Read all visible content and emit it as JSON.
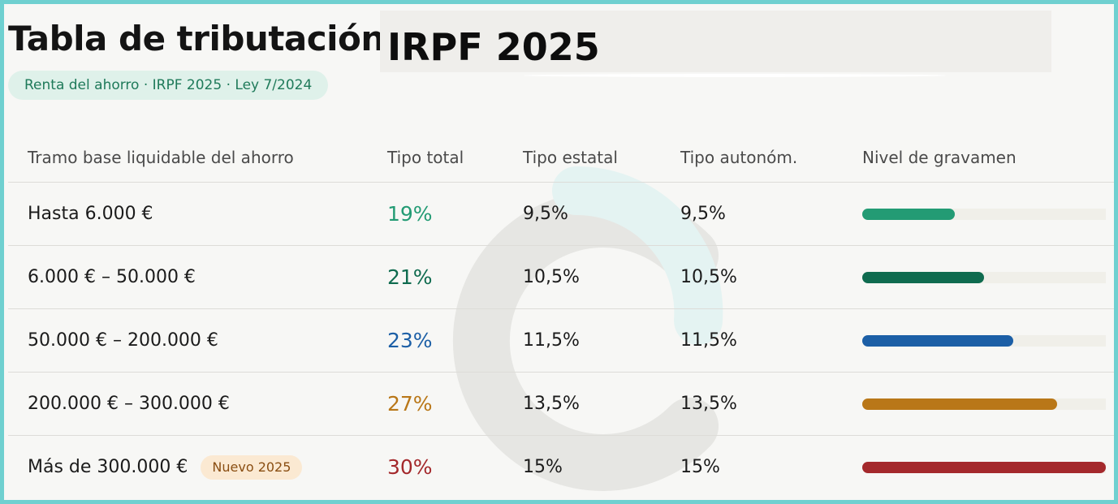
{
  "header": {
    "title": "Tabla de tributación",
    "title_overlay": "IRPF 2025",
    "badge": "Renta del ahorro · IRPF 2025 · Ley 7/2024"
  },
  "table": {
    "columns": [
      "Tramo base liquidable del ahorro",
      "Tipo total",
      "Tipo estatal",
      "Tipo autonóm.",
      "Nivel de gravamen"
    ],
    "rows": [
      {
        "tramo": "Hasta 6.000 €",
        "badge": "",
        "total": "19%",
        "estatal": "9,5%",
        "autonomico": "9,5%",
        "color": "#239b74",
        "level": 0.38
      },
      {
        "tramo": "6.000 € – 50.000 €",
        "badge": "",
        "total": "21%",
        "estatal": "10,5%",
        "autonomico": "10,5%",
        "color": "#0f6b4f",
        "level": 0.5
      },
      {
        "tramo": "50.000 € – 200.000 €",
        "badge": "",
        "total": "23%",
        "estatal": "11,5%",
        "autonomico": "11,5%",
        "color": "#1c5fa6",
        "level": 0.62
      },
      {
        "tramo": "200.000 € – 300.000 €",
        "badge": "",
        "total": "27%",
        "estatal": "13,5%",
        "autonomico": "13,5%",
        "color": "#b97718",
        "level": 0.8
      },
      {
        "tramo": "Más de 300.000 €",
        "badge": "Nuevo 2025",
        "total": "30%",
        "estatal": "15%",
        "autonomico": "15%",
        "color": "#a4292c",
        "level": 1.0
      }
    ]
  }
}
